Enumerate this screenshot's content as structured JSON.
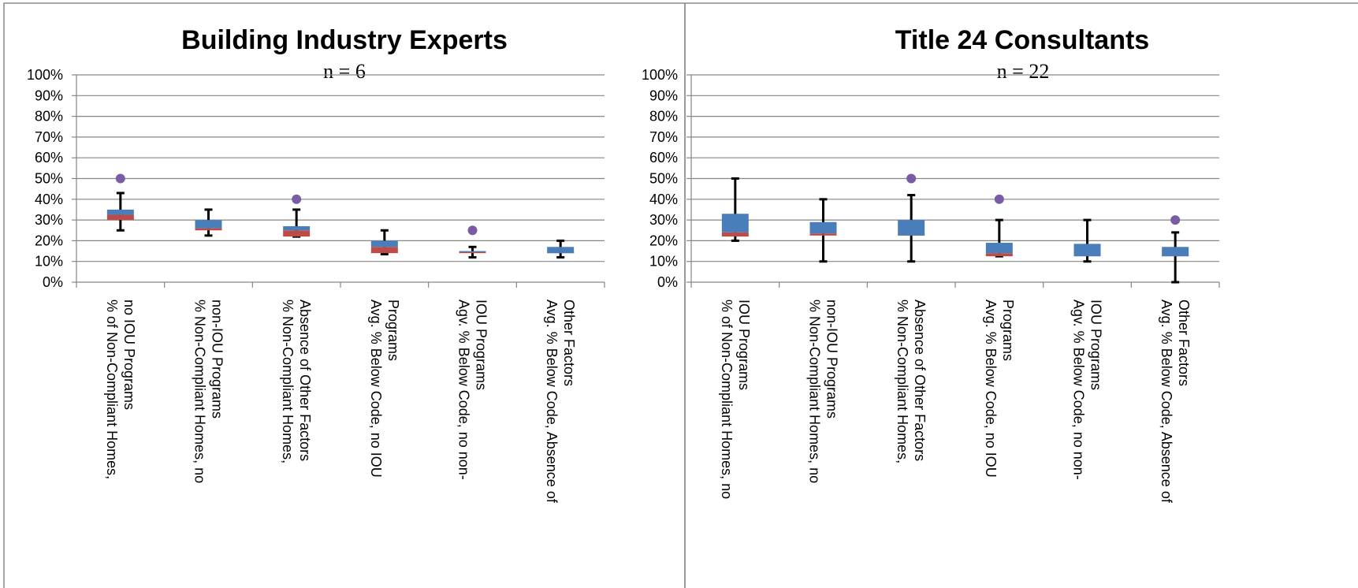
{
  "colors": {
    "box_upper": "#4a7ebb",
    "box_lower": "#be4b48",
    "whisker": "#000000",
    "outlier": "#7a5ba6",
    "grid": "#868686",
    "frame": "#8c8c8c"
  },
  "y_ticks": [
    "0%",
    "10%",
    "20%",
    "30%",
    "40%",
    "50%",
    "60%",
    "70%",
    "80%",
    "90%",
    "100%"
  ],
  "chart_data": [
    {
      "type": "box",
      "title": "Building Industry Experts",
      "subtitle": "n = 6",
      "ylim": [
        0,
        100
      ],
      "grid": true,
      "categories": [
        [
          "% of Non-Compliant Homes,",
          "no IOU Programs"
        ],
        [
          "% Non-Compliant Homes, no",
          "non-IOU Programs"
        ],
        [
          "% Non-Compliant Homes,",
          "Absence of Other Factors"
        ],
        [
          "Avg. % Below Code, no IOU",
          "Programs"
        ],
        [
          "Agv. % Below Code, no non-",
          "IOU Programs"
        ],
        [
          "Avg. % Below Code, Absence of",
          "Other Factors"
        ]
      ],
      "boxes": [
        {
          "min": 25,
          "q1": 30,
          "median": 32.5,
          "q3": 35,
          "max": 43,
          "outliers": [
            50
          ]
        },
        {
          "min": 22.5,
          "q1": 25,
          "median": 26,
          "q3": 30,
          "max": 35,
          "outliers": []
        },
        {
          "min": 22,
          "q1": 22,
          "median": 25,
          "q3": 27,
          "max": 35,
          "outliers": [
            40
          ]
        },
        {
          "min": 13.5,
          "q1": 14,
          "median": 17,
          "q3": 20,
          "max": 25,
          "outliers": []
        },
        {
          "min": 12,
          "q1": 14,
          "median": 14.5,
          "q3": 15,
          "max": 17,
          "outliers": [
            25
          ]
        },
        {
          "min": 12,
          "q1": 14,
          "median": 14,
          "q3": 17,
          "max": 20,
          "outliers": []
        }
      ]
    },
    {
      "type": "box",
      "title": "Title 24 Consultants",
      "subtitle": "n = 22",
      "ylim": [
        0,
        100
      ],
      "grid": true,
      "categories": [
        [
          "% of Non-Compliant Homes, no",
          "IOU Programs"
        ],
        [
          "% Non-Compliant Homes, no",
          "non-IOU Programs"
        ],
        [
          "% Non-Compliant Homes,",
          "Absence of Other Factors"
        ],
        [
          "Avg. % Below Code, no IOU",
          "Programs"
        ],
        [
          "Agv. % Below Code, no non-",
          "IOU Programs"
        ],
        [
          "Avg. % Below Code, Absence of",
          "Other Factors"
        ]
      ],
      "boxes": [
        {
          "min": 20,
          "q1": 22,
          "median": 24,
          "q3": 33,
          "max": 50,
          "outliers": []
        },
        {
          "min": 10,
          "q1": 22.5,
          "median": 23.5,
          "q3": 29,
          "max": 40,
          "outliers": []
        },
        {
          "min": 10,
          "q1": 22.5,
          "median": 22.5,
          "q3": 30,
          "max": 42,
          "outliers": [
            50
          ]
        },
        {
          "min": 12.5,
          "q1": 12.5,
          "median": 14,
          "q3": 19,
          "max": 30,
          "outliers": [
            40
          ]
        },
        {
          "min": 10,
          "q1": 12.5,
          "median": 12.5,
          "q3": 18.5,
          "max": 30,
          "outliers": []
        },
        {
          "min": 0,
          "q1": 12.5,
          "median": 12.5,
          "q3": 17,
          "max": 24,
          "outliers": [
            30
          ]
        }
      ]
    }
  ]
}
